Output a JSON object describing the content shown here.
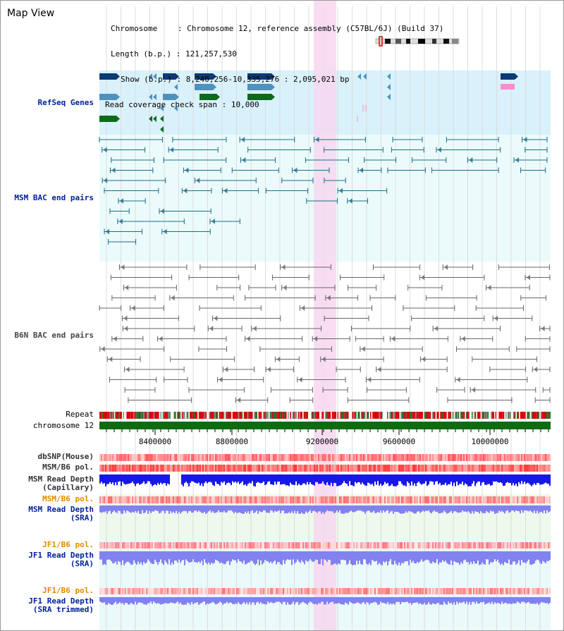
{
  "view_title": "Map View",
  "info": {
    "chromosome_label": "Chromosome",
    "chromosome_value": "Chromosome 12, reference assembly (C57BL/6J) (Build 37)",
    "length_label": "Length (b.p.)",
    "length_value": "121,257,530",
    "show_label": "Show (b.p.)",
    "show_value": "8,240,256-10,335,276 : 2,095,021 bp",
    "coverage_label": "Read coverage check span",
    "coverage_value": "10,000"
  },
  "tracks": {
    "refseq": "RefSeq Genes",
    "msm_bac": "MSM BAC end pairs",
    "b6n_bac": "B6N BAC end pairs",
    "repeat": "Repeat",
    "chromosome": "chromosome 12",
    "dbsnp": "dbSNP(Mouse)",
    "msm_b6_pol_1": "MSM/B6 pol.",
    "msm_depth_cap_1": "MSM Read Depth",
    "msm_depth_cap_2": "(Capillary)",
    "msm_b6_pol_2": "MSM/B6 pol.",
    "msm_depth_sra_1": "MSM Read Depth",
    "msm_depth_sra_2": "(SRA)",
    "jf1_pol_1": "JF1/B6 pol.",
    "jf1_depth_sra_1": "JF1 Read Depth",
    "jf1_depth_sra_2": "(SRA)",
    "jf1_pol_2": "JF1/B6 pol.",
    "jf1_depth_trim_1": "JF1 Read Depth",
    "jf1_depth_trim_2": "(SRA trimmed)"
  },
  "axis_ticks": [
    "8400000",
    "8800000",
    "9200000",
    "9600000",
    "10000000"
  ],
  "colors": {
    "refseq_bg": "#d9f1fa",
    "bac_bg": "#ebfbfb",
    "highlight": "#f7d7f0",
    "gene_dark": "#0b3a74",
    "gene_mid": "#4f91bd",
    "gene_green": "#0d6a1a",
    "gene_pink": "#f58fcf",
    "bac_msm": "#1d6b86",
    "bac_b6n": "#666666",
    "chrom_bar": "#0f6b10",
    "depth_blue": "#1818e6",
    "depth_light": "#8181f0",
    "label_orange": "#e08a00",
    "label_blue": "#00229a"
  }
}
